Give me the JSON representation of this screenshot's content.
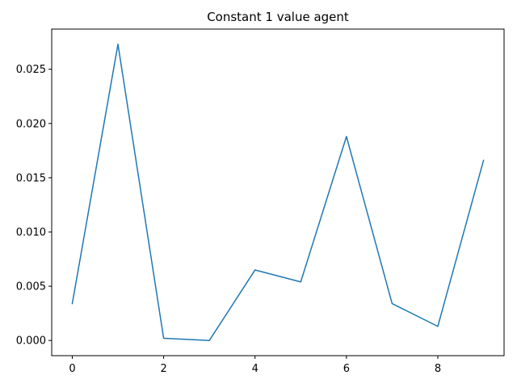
{
  "chart_data": {
    "type": "line",
    "title": "Constant 1 value agent",
    "xlabel": "",
    "ylabel": "",
    "x": [
      0,
      1,
      2,
      3,
      4,
      5,
      6,
      7,
      8,
      9
    ],
    "series": [
      {
        "values": [
          0.0034,
          0.0273,
          0.0002,
          0.0,
          0.0065,
          0.0054,
          0.0188,
          0.0034,
          0.0013,
          0.0166
        ],
        "color": "#1f77b4"
      }
    ],
    "xlim": [
      -0.45,
      9.45
    ],
    "ylim": [
      -0.0014,
      0.0287
    ],
    "xticks": [
      0,
      2,
      4,
      6,
      8
    ],
    "xtick_labels": [
      "0",
      "2",
      "4",
      "6",
      "8"
    ],
    "yticks": [
      0.0,
      0.005,
      0.01,
      0.015,
      0.02,
      0.025
    ],
    "ytick_labels": [
      "0.000",
      "0.005",
      "0.010",
      "0.015",
      "0.020",
      "0.025"
    ],
    "grid": false,
    "legend": false
  }
}
